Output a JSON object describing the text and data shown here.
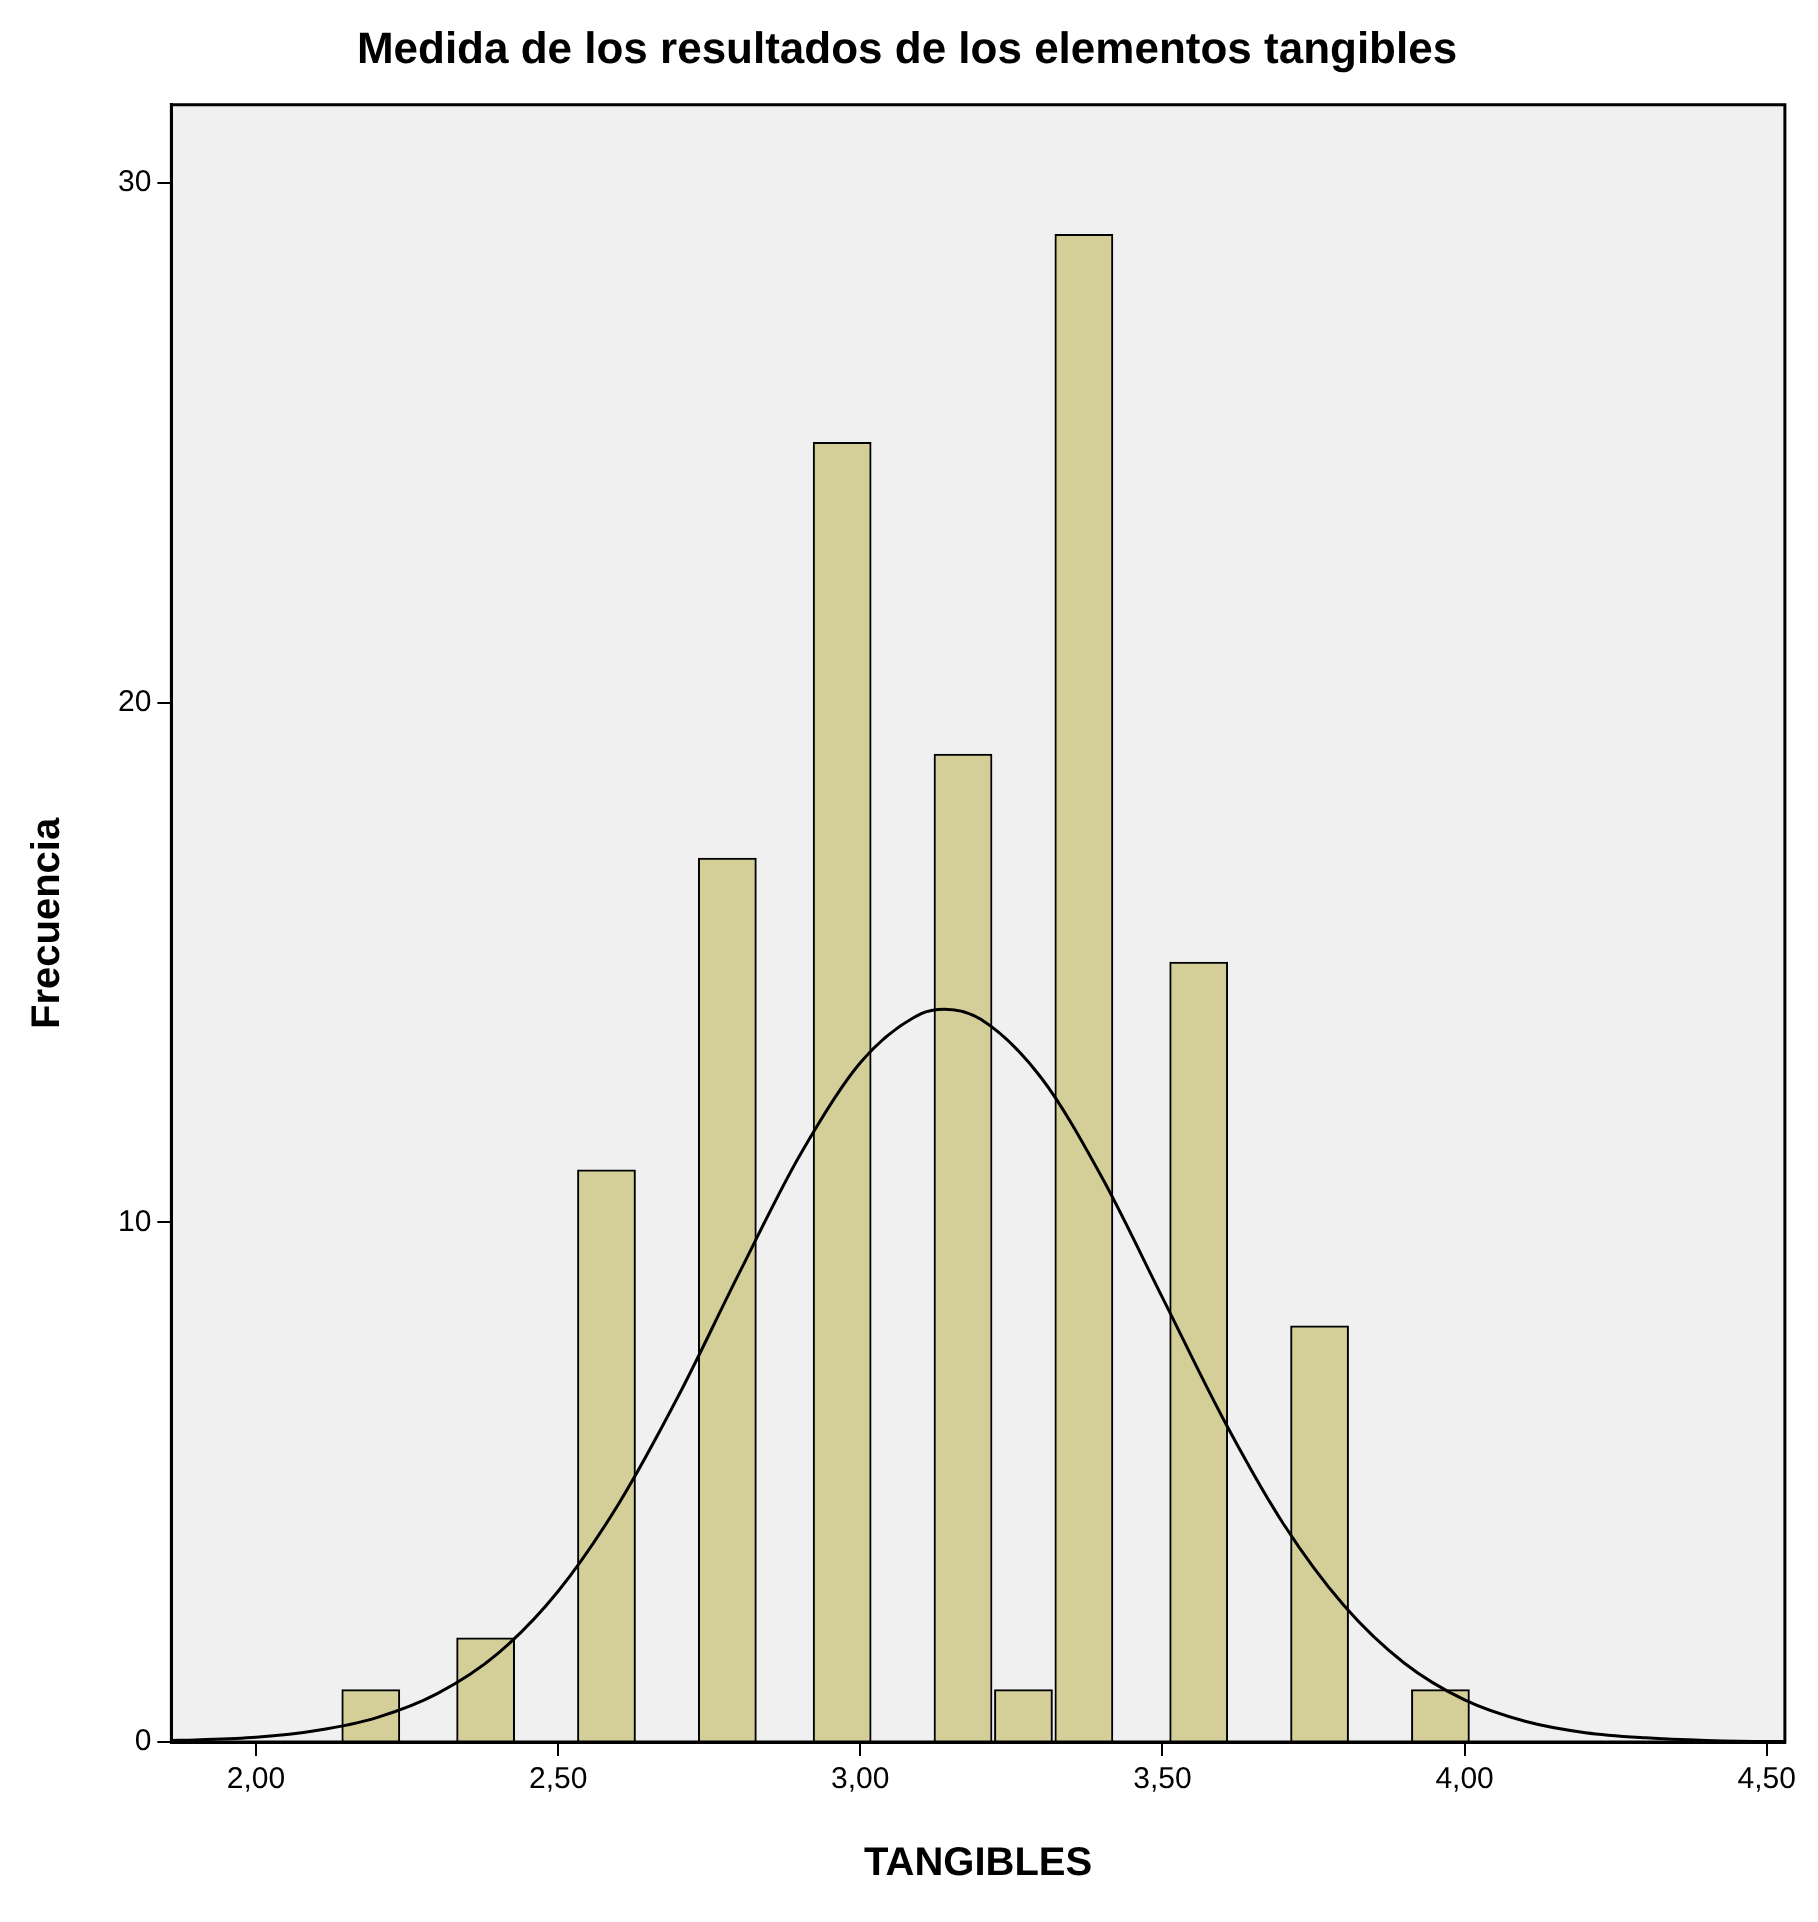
{
  "chart_data": {
    "type": "histogram",
    "title": "Medida de los resultados de los elementos tangibles",
    "xlabel": "TANGIBLES",
    "ylabel": "Frecuencia",
    "bins": [
      2.14,
      2.24,
      2.33,
      2.43,
      2.53,
      2.63,
      2.73,
      2.83,
      2.92,
      3.02,
      3.12,
      3.22,
      3.32,
      3.42,
      3.51,
      3.61,
      3.71,
      3.81,
      3.91,
      4.01
    ],
    "series": [
      {
        "color": "#d4cf99",
        "values": [
          1,
          0,
          2,
          0,
          11,
          0,
          17,
          0,
          25,
          0,
          19,
          1,
          29,
          0,
          15,
          0,
          8,
          0,
          1
        ]
      },
      {
        "type": "line",
        "color": "#000000",
        "marker": "none",
        "x": [
          1.86,
          1.9,
          2.0,
          2.1,
          2.2,
          2.3,
          2.4,
          2.5,
          2.6,
          2.7,
          2.8,
          2.9,
          3.0,
          3.1,
          3.14,
          3.2,
          3.3,
          3.4,
          3.5,
          3.6,
          3.7,
          3.8,
          3.9,
          4.0,
          4.1,
          4.2,
          4.3,
          4.4,
          4.5,
          4.53
        ],
        "values": [
          0.03,
          0.04,
          0.09,
          0.22,
          0.47,
          0.93,
          1.7,
          2.9,
          4.58,
          6.68,
          9.03,
          11.29,
          13.07,
          14.01,
          14.1,
          13.9,
          12.77,
          10.86,
          8.55,
          6.23,
          4.2,
          2.63,
          1.52,
          0.81,
          0.4,
          0.18,
          0.08,
          0.03,
          0.01,
          0.01
        ]
      }
    ],
    "xlim": [
      1.86,
      4.53
    ],
    "xticks": [
      {
        "value": 2,
        "label": "2,00"
      },
      {
        "value": 2.5,
        "label": "2,50"
      },
      {
        "value": 3,
        "label": "3,00"
      },
      {
        "value": 3.5,
        "label": "3,50"
      },
      {
        "value": 4,
        "label": "4,00"
      },
      {
        "value": 4.5,
        "label": "4,50"
      }
    ],
    "ylim": [
      0,
      31.5
    ],
    "yticks": [
      0,
      10,
      20,
      30
    ],
    "grid": false,
    "legend": false
  }
}
